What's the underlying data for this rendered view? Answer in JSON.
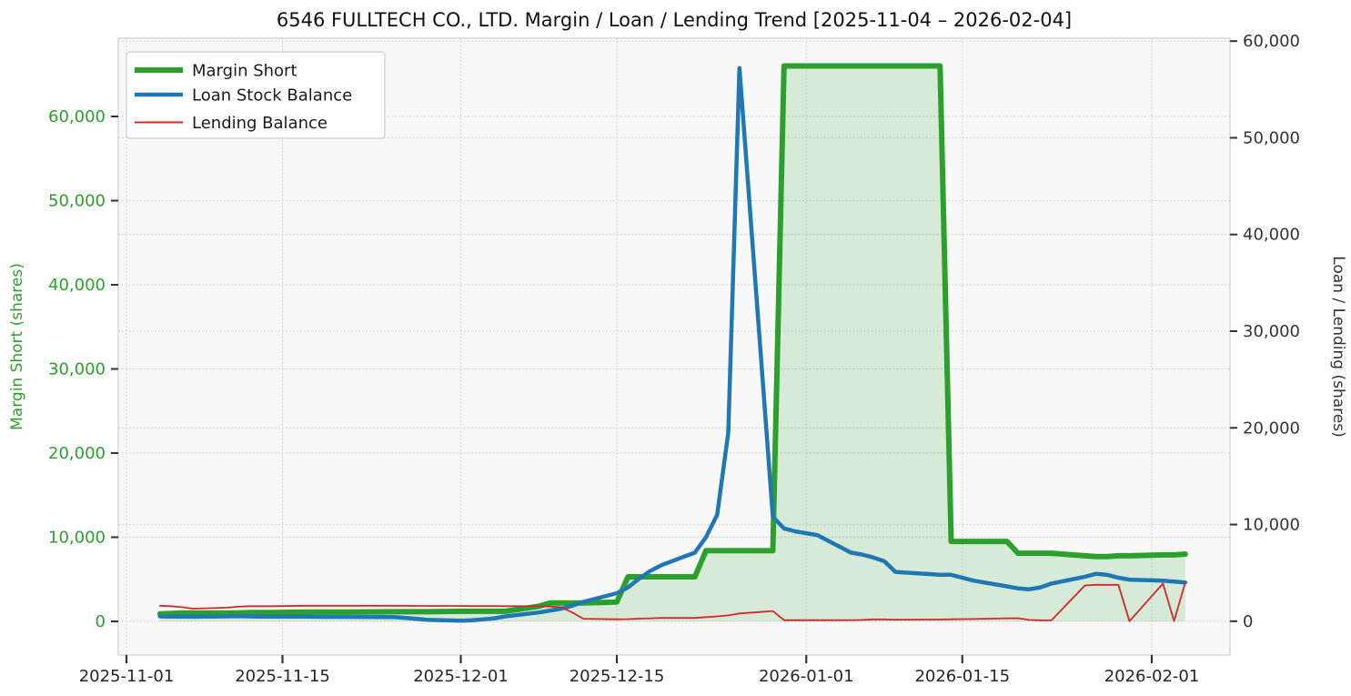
{
  "title": "6546 FULLTECH CO., LTD. Margin / Loan / Lending Trend [2025-11-04 – 2026-02-04]",
  "chart_data": {
    "type": "line",
    "title": "6546 FULLTECH CO., LTD. Margin / Loan / Lending Trend [2025-11-04 – 2026-02-04]",
    "grid": "dotted, both axes",
    "legend_position": "upper-left",
    "x_axis": {
      "origin_date": "2025-11-01",
      "tick_labels": [
        "2025-11-01",
        "2025-11-15",
        "2025-12-01",
        "2025-12-15",
        "2026-01-01",
        "2026-01-15",
        "2026-02-01"
      ],
      "data_start": "2025-11-04",
      "data_end": "2026-02-04"
    },
    "left_axis": {
      "label": "Margin Short (shares)",
      "color": "#2ca02c",
      "ticks": [
        0,
        10000,
        20000,
        30000,
        40000,
        50000,
        60000
      ],
      "min": -4000,
      "max": 69300
    },
    "right_axis": {
      "label": "Loan / Lending (shares)",
      "color": "#333333",
      "ticks": [
        0,
        10000,
        20000,
        30000,
        40000,
        50000,
        60000
      ],
      "min": -3500,
      "max": 60300
    },
    "legend": [
      "Margin Short",
      "Loan Stock Balance",
      "Lending Balance"
    ],
    "series": [
      {
        "name": "Margin Short",
        "axis": "left",
        "color": "#2ca02c",
        "line_width": 6,
        "fill": "rgba(44,160,44,0.16)",
        "points": [
          [
            "2025-11-04",
            900
          ],
          [
            "2025-11-05",
            950
          ],
          [
            "2025-11-06",
            1000
          ],
          [
            "2025-11-07",
            1000
          ],
          [
            "2025-11-10",
            1000
          ],
          [
            "2025-11-11",
            1000
          ],
          [
            "2025-11-12",
            1050
          ],
          [
            "2025-11-13",
            1050
          ],
          [
            "2025-11-14",
            1050
          ],
          [
            "2025-11-17",
            1100
          ],
          [
            "2025-11-18",
            1100
          ],
          [
            "2025-11-19",
            1100
          ],
          [
            "2025-11-20",
            1100
          ],
          [
            "2025-11-21",
            1100
          ],
          [
            "2025-11-25",
            1150
          ],
          [
            "2025-11-26",
            1150
          ],
          [
            "2025-11-27",
            1150
          ],
          [
            "2025-11-28",
            1150
          ],
          [
            "2025-12-01",
            1200
          ],
          [
            "2025-12-02",
            1200
          ],
          [
            "2025-12-03",
            1200
          ],
          [
            "2025-12-04",
            1200
          ],
          [
            "2025-12-05",
            1200
          ],
          [
            "2025-12-08",
            1800
          ],
          [
            "2025-12-09",
            2200
          ],
          [
            "2025-12-10",
            2200
          ],
          [
            "2025-12-11",
            2200
          ],
          [
            "2025-12-12",
            2200
          ],
          [
            "2025-12-15",
            2300
          ],
          [
            "2025-12-16",
            5300
          ],
          [
            "2025-12-17",
            5300
          ],
          [
            "2025-12-18",
            5300
          ],
          [
            "2025-12-19",
            5300
          ],
          [
            "2025-12-22",
            5300
          ],
          [
            "2025-12-23",
            8400
          ],
          [
            "2025-12-24",
            8400
          ],
          [
            "2025-12-25",
            8400
          ],
          [
            "2025-12-26",
            8400
          ],
          [
            "2025-12-29",
            8400
          ],
          [
            "2025-12-30",
            66000
          ],
          [
            "2025-12-31",
            66000
          ],
          [
            "2026-01-02",
            66000
          ],
          [
            "2026-01-05",
            66000
          ],
          [
            "2026-01-06",
            66000
          ],
          [
            "2026-01-07",
            66000
          ],
          [
            "2026-01-08",
            66000
          ],
          [
            "2026-01-09",
            66000
          ],
          [
            "2026-01-13",
            66000
          ],
          [
            "2026-01-14",
            9500
          ],
          [
            "2026-01-15",
            9500
          ],
          [
            "2026-01-16",
            9500
          ],
          [
            "2026-01-19",
            9500
          ],
          [
            "2026-01-20",
            8100
          ],
          [
            "2026-01-21",
            8100
          ],
          [
            "2026-01-22",
            8100
          ],
          [
            "2026-01-23",
            8100
          ],
          [
            "2026-01-26",
            7800
          ],
          [
            "2026-01-27",
            7700
          ],
          [
            "2026-01-28",
            7700
          ],
          [
            "2026-01-29",
            7800
          ],
          [
            "2026-01-30",
            7800
          ],
          [
            "2026-02-02",
            7900
          ],
          [
            "2026-02-03",
            7900
          ],
          [
            "2026-02-04",
            8000
          ]
        ]
      },
      {
        "name": "Loan Stock Balance",
        "axis": "right",
        "color": "#1f77b4",
        "line_width": 4.5,
        "fill": null,
        "points": [
          [
            "2025-11-04",
            500
          ],
          [
            "2025-11-05",
            480
          ],
          [
            "2025-11-06",
            470
          ],
          [
            "2025-11-07",
            460
          ],
          [
            "2025-11-10",
            500
          ],
          [
            "2025-11-11",
            520
          ],
          [
            "2025-11-12",
            500
          ],
          [
            "2025-11-13",
            480
          ],
          [
            "2025-11-14",
            470
          ],
          [
            "2025-11-17",
            470
          ],
          [
            "2025-11-18",
            460
          ],
          [
            "2025-11-19",
            450
          ],
          [
            "2025-11-20",
            450
          ],
          [
            "2025-11-21",
            450
          ],
          [
            "2025-11-25",
            430
          ],
          [
            "2025-11-26",
            350
          ],
          [
            "2025-11-27",
            250
          ],
          [
            "2025-11-28",
            150
          ],
          [
            "2025-12-01",
            50
          ],
          [
            "2025-12-02",
            100
          ],
          [
            "2025-12-03",
            200
          ],
          [
            "2025-12-04",
            300
          ],
          [
            "2025-12-05",
            500
          ],
          [
            "2025-12-08",
            900
          ],
          [
            "2025-12-09",
            1100
          ],
          [
            "2025-12-10",
            1300
          ],
          [
            "2025-12-11",
            1600
          ],
          [
            "2025-12-12",
            2000
          ],
          [
            "2025-12-15",
            2900
          ],
          [
            "2025-12-16",
            3500
          ],
          [
            "2025-12-17",
            4400
          ],
          [
            "2025-12-18",
            5200
          ],
          [
            "2025-12-19",
            5800
          ],
          [
            "2025-12-22",
            7100
          ],
          [
            "2025-12-23",
            8700
          ],
          [
            "2025-12-24",
            11000
          ],
          [
            "2025-12-25",
            19500
          ],
          [
            "2025-12-26",
            57200
          ],
          [
            "2025-12-29",
            10800
          ],
          [
            "2025-12-30",
            9600
          ],
          [
            "2025-12-31",
            9300
          ],
          [
            "2026-01-02",
            8900
          ],
          [
            "2026-01-05",
            7100
          ],
          [
            "2026-01-06",
            6900
          ],
          [
            "2026-01-07",
            6600
          ],
          [
            "2026-01-08",
            6200
          ],
          [
            "2026-01-09",
            5100
          ],
          [
            "2026-01-13",
            4800
          ],
          [
            "2026-01-14",
            4800
          ],
          [
            "2026-01-15",
            4500
          ],
          [
            "2026-01-16",
            4200
          ],
          [
            "2026-01-19",
            3600
          ],
          [
            "2026-01-20",
            3400
          ],
          [
            "2026-01-21",
            3300
          ],
          [
            "2026-01-22",
            3500
          ],
          [
            "2026-01-23",
            3900
          ],
          [
            "2026-01-26",
            4600
          ],
          [
            "2026-01-27",
            4900
          ],
          [
            "2026-01-28",
            4800
          ],
          [
            "2026-01-29",
            4500
          ],
          [
            "2026-01-30",
            4300
          ],
          [
            "2026-02-02",
            4200
          ],
          [
            "2026-02-03",
            4100
          ],
          [
            "2026-02-04",
            4000
          ]
        ]
      },
      {
        "name": "Lending Balance",
        "axis": "right",
        "color": "#d62728",
        "line_width": 1.8,
        "fill": null,
        "points": [
          [
            "2025-11-04",
            1600
          ],
          [
            "2025-11-05",
            1550
          ],
          [
            "2025-11-06",
            1450
          ],
          [
            "2025-11-07",
            1300
          ],
          [
            "2025-11-10",
            1400
          ],
          [
            "2025-11-11",
            1500
          ],
          [
            "2025-11-12",
            1550
          ],
          [
            "2025-11-13",
            1550
          ],
          [
            "2025-11-14",
            1550
          ],
          [
            "2025-11-17",
            1600
          ],
          [
            "2025-11-18",
            1600
          ],
          [
            "2025-11-19",
            1600
          ],
          [
            "2025-11-20",
            1600
          ],
          [
            "2025-11-21",
            1600
          ],
          [
            "2025-11-25",
            1600
          ],
          [
            "2025-11-26",
            1600
          ],
          [
            "2025-11-27",
            1580
          ],
          [
            "2025-11-28",
            1580
          ],
          [
            "2025-12-01",
            1580
          ],
          [
            "2025-12-02",
            1560
          ],
          [
            "2025-12-03",
            1560
          ],
          [
            "2025-12-04",
            1560
          ],
          [
            "2025-12-05",
            1550
          ],
          [
            "2025-12-08",
            1550
          ],
          [
            "2025-12-09",
            1520
          ],
          [
            "2025-12-10",
            1450
          ],
          [
            "2025-12-11",
            900
          ],
          [
            "2025-12-12",
            250
          ],
          [
            "2025-12-15",
            200
          ],
          [
            "2025-12-16",
            220
          ],
          [
            "2025-12-17",
            260
          ],
          [
            "2025-12-18",
            300
          ],
          [
            "2025-12-19",
            340
          ],
          [
            "2025-12-22",
            340
          ],
          [
            "2025-12-23",
            420
          ],
          [
            "2025-12-24",
            500
          ],
          [
            "2025-12-25",
            600
          ],
          [
            "2025-12-26",
            800
          ],
          [
            "2025-12-29",
            1050
          ],
          [
            "2025-12-30",
            100
          ],
          [
            "2025-12-31",
            100
          ],
          [
            "2026-01-02",
            100
          ],
          [
            "2026-01-05",
            110
          ],
          [
            "2026-01-06",
            130
          ],
          [
            "2026-01-07",
            190
          ],
          [
            "2026-01-08",
            190
          ],
          [
            "2026-01-09",
            160
          ],
          [
            "2026-01-13",
            180
          ],
          [
            "2026-01-14",
            200
          ],
          [
            "2026-01-15",
            220
          ],
          [
            "2026-01-16",
            230
          ],
          [
            "2026-01-19",
            300
          ],
          [
            "2026-01-20",
            310
          ],
          [
            "2026-01-21",
            130
          ],
          [
            "2026-01-22",
            90
          ],
          [
            "2026-01-23",
            100
          ],
          [
            "2026-01-26",
            3700
          ],
          [
            "2026-01-27",
            3760
          ],
          [
            "2026-01-28",
            3760
          ],
          [
            "2026-01-29",
            3760
          ],
          [
            "2026-01-30",
            0
          ],
          [
            "2026-02-02",
            3900
          ],
          [
            "2026-02-03",
            0
          ],
          [
            "2026-02-04",
            4000
          ]
        ]
      }
    ]
  }
}
